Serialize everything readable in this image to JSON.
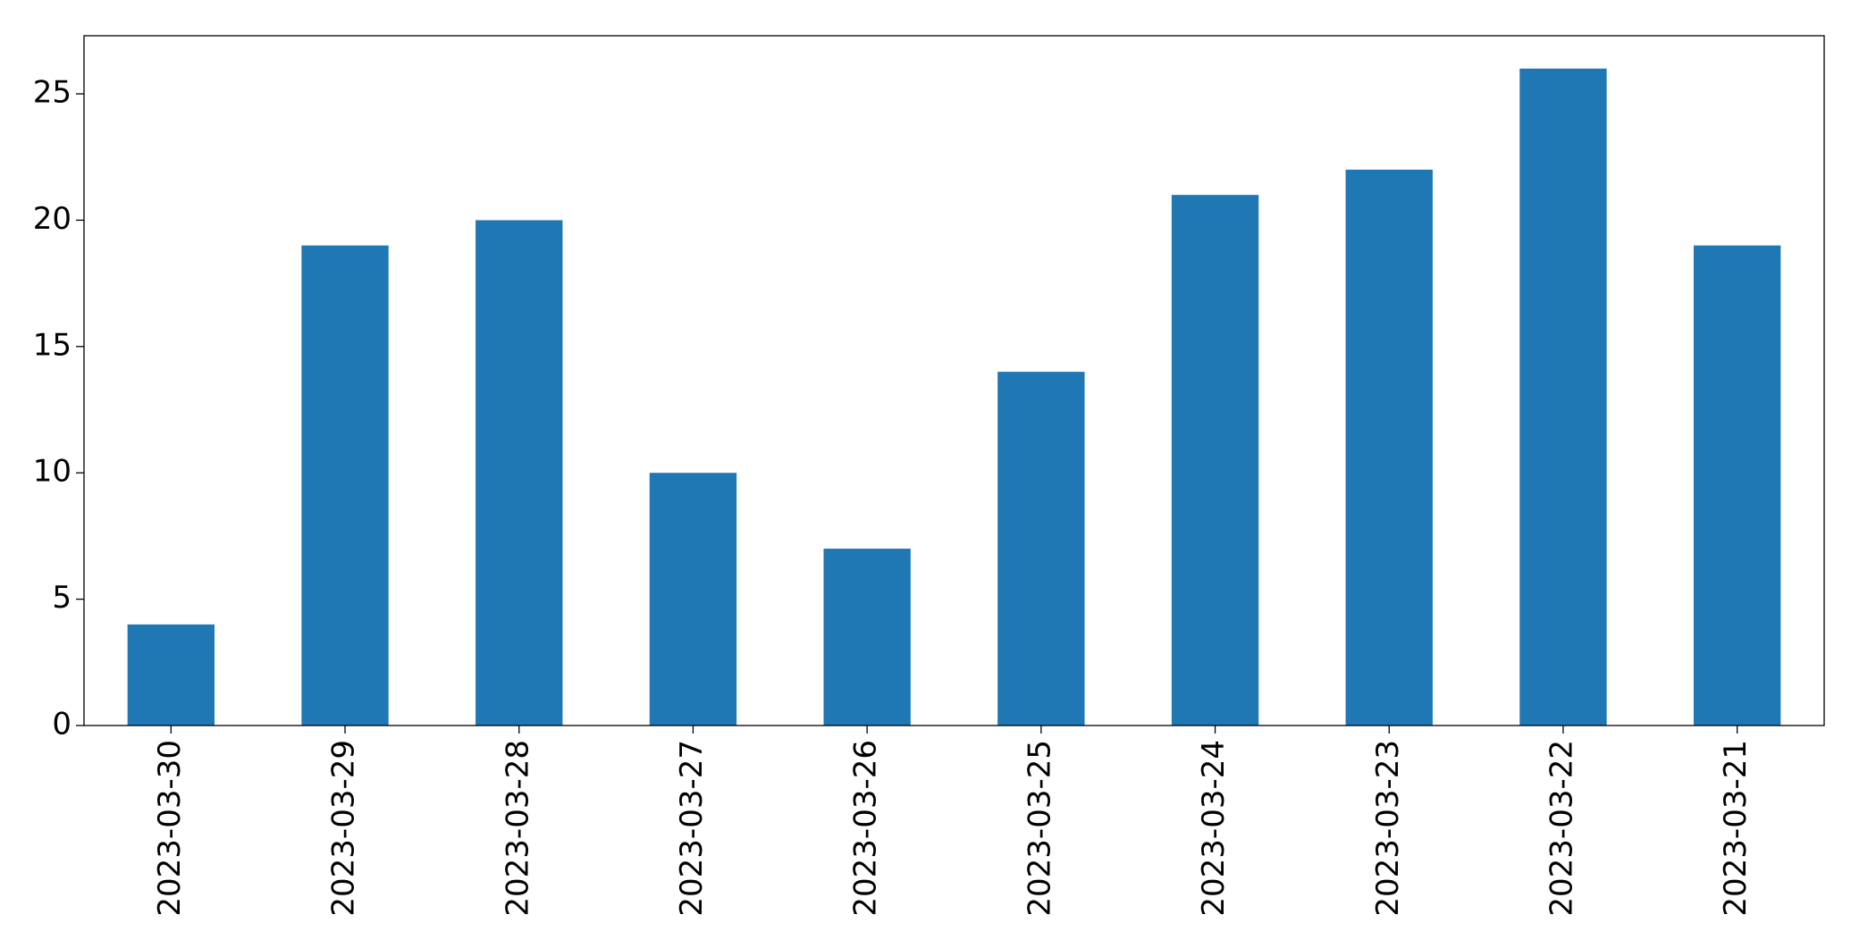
{
  "chart_data": {
    "type": "bar",
    "categories": [
      "2023-03-30",
      "2023-03-29",
      "2023-03-28",
      "2023-03-27",
      "2023-03-26",
      "2023-03-25",
      "2023-03-24",
      "2023-03-23",
      "2023-03-22",
      "2023-03-21"
    ],
    "values": [
      4,
      19,
      20,
      10,
      7,
      14,
      21,
      22,
      26,
      19
    ],
    "color": "#1f77b4",
    "ylim": [
      0,
      27.3
    ],
    "yticks": [
      0,
      5,
      10,
      15,
      20,
      25
    ],
    "grid": false
  }
}
